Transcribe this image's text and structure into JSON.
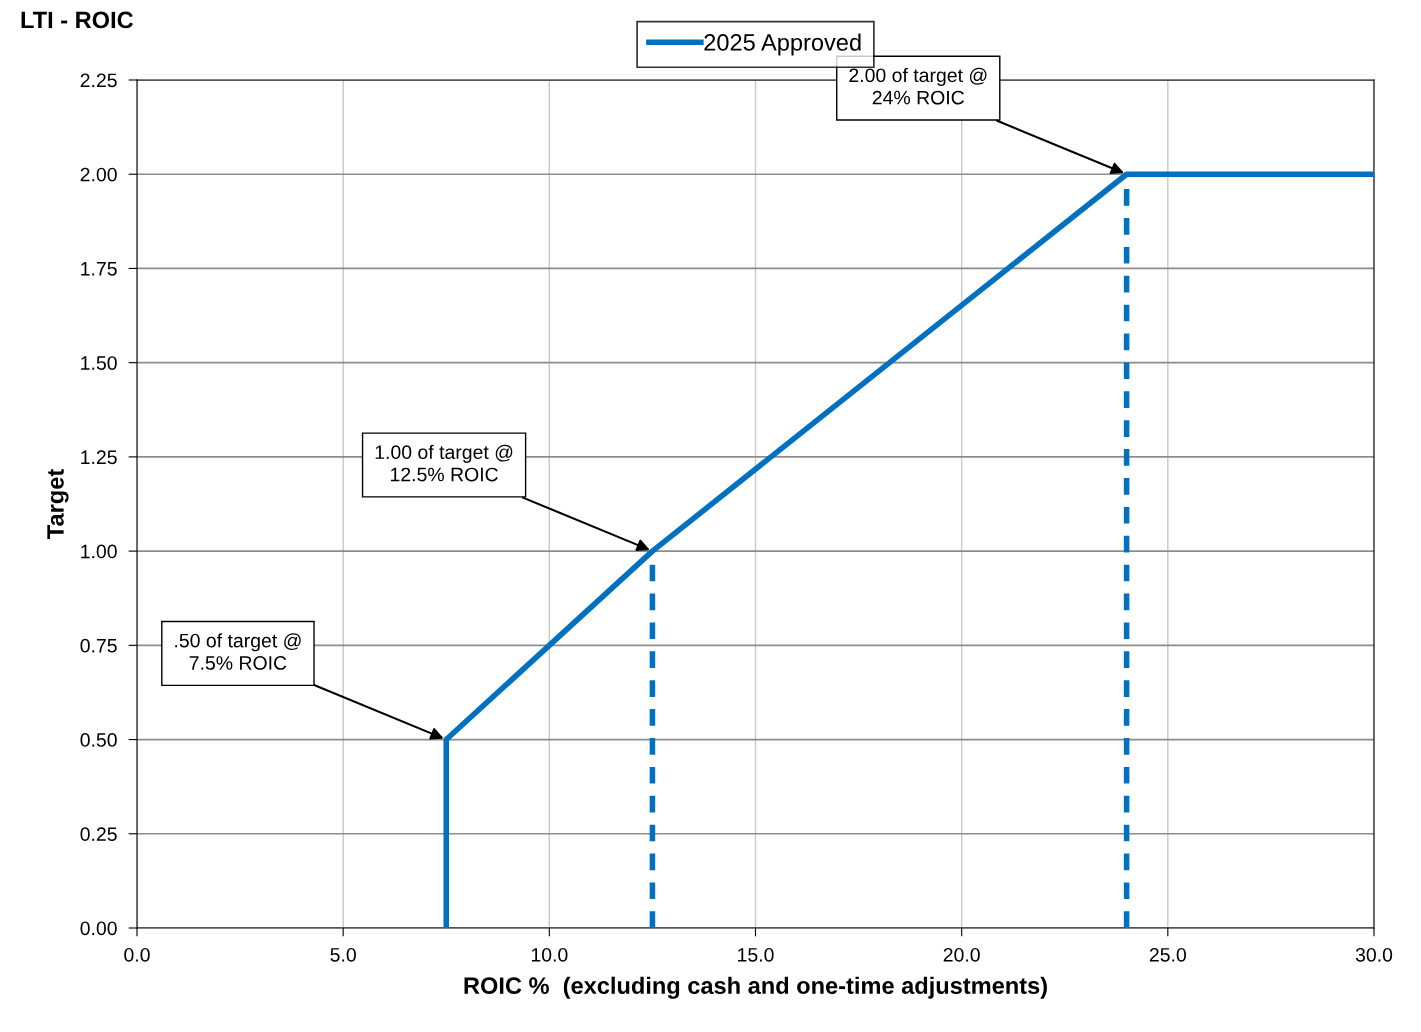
{
  "chart_data": {
    "type": "line",
    "title": "LTI - ROIC",
    "xlabel": "ROIC %  (excluding cash and one-time adjustments)",
    "ylabel": "Target",
    "series": [
      {
        "name": "2025 Approved",
        "color": "#0070c0",
        "x": [
          7.5,
          7.5,
          12.5,
          24,
          30
        ],
        "values": [
          0,
          0.5,
          1.0,
          2.0,
          2.0
        ],
        "line_style": "solid"
      },
      {
        "color": "#0070c0",
        "x": [
          12.5,
          12.5
        ],
        "values": [
          0,
          1.0
        ],
        "line_style": "dashed"
      },
      {
        "color": "#0070c0",
        "x": [
          24,
          24
        ],
        "values": [
          0,
          2.0
        ],
        "line_style": "dashed"
      }
    ],
    "xlim": [
      0,
      30
    ],
    "ylim": [
      0,
      2.25
    ],
    "xticks": [
      {
        "value": 0,
        "label": "0.0"
      },
      {
        "value": 5,
        "label": "5.0"
      },
      {
        "value": 10,
        "label": "10.0"
      },
      {
        "value": 15,
        "label": "15.0"
      },
      {
        "value": 20,
        "label": "20.0"
      },
      {
        "value": 25,
        "label": "25.0"
      },
      {
        "value": 30,
        "label": "30.0"
      }
    ],
    "yticks": [
      {
        "value": 0,
        "label": "0.00"
      },
      {
        "value": 0.25,
        "label": "0.25"
      },
      {
        "value": 0.5,
        "label": "0.50"
      },
      {
        "value": 0.75,
        "label": "0.75"
      },
      {
        "value": 1.0,
        "label": "1.00"
      },
      {
        "value": 1.25,
        "label": "1.25"
      },
      {
        "value": 1.5,
        "label": "1.50"
      },
      {
        "value": 1.75,
        "label": "1.75"
      },
      {
        "value": 2.0,
        "label": "2.00"
      },
      {
        "value": 2.25,
        "label": "2.25"
      }
    ],
    "annotations": [
      {
        "text": ".50 of target @\n7.5% ROIC",
        "x": 7.5,
        "y": 0.5
      },
      {
        "text": "1.00 of target @\n12.5% ROIC",
        "x": 12.5,
        "y": 1.0
      },
      {
        "text": "2.00 of target @\n24% ROIC",
        "x": 24,
        "y": 2.0
      }
    ],
    "grid": true,
    "legend": "top",
    "marker": "none"
  }
}
